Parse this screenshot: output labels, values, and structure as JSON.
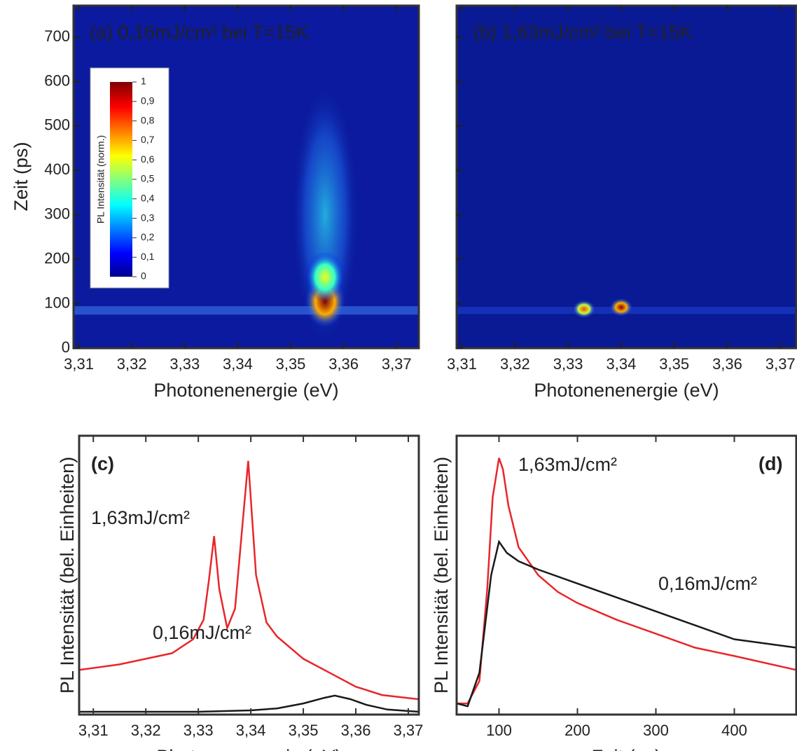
{
  "chart_data": [
    {
      "type": "heatmap",
      "title": "(a)  0,16mJ/cm² bei T=15K",
      "xlabel": "Photonenenergie (eV)",
      "ylabel": "Zeit (ps)",
      "xlim": [
        3.309,
        3.3742
      ],
      "ylim": [
        0,
        771
      ],
      "xticks": [
        {
          "value": 3.31,
          "label": "3,31"
        },
        {
          "value": 3.32,
          "label": "3,32"
        },
        {
          "value": 3.33,
          "label": "3,33"
        },
        {
          "value": 3.34,
          "label": "3,34"
        },
        {
          "value": 3.35,
          "label": "3,35"
        },
        {
          "value": 3.36,
          "label": "3,36"
        },
        {
          "value": 3.37,
          "label": "3,37"
        }
      ],
      "yticks": [
        0,
        100,
        200,
        300,
        400,
        500,
        600,
        700
      ],
      "spots": [
        {
          "x": 3.3565,
          "y": 105,
          "value": 1
        },
        {
          "x": 3.3565,
          "y": 160,
          "value": 0.6
        }
      ],
      "colorbar": {
        "label": "PL Intensität (norm.)",
        "ticks": [
          {
            "value": 0,
            "label": "0"
          },
          {
            "value": 0.1,
            "label": "0,1"
          },
          {
            "value": 0.2,
            "label": "0,2"
          },
          {
            "value": 0.3,
            "label": "0,3"
          },
          {
            "value": 0.4,
            "label": "0,4"
          },
          {
            "value": 0.5,
            "label": "0,5"
          },
          {
            "value": 0.6,
            "label": "0,6"
          },
          {
            "value": 0.7,
            "label": "0,7"
          },
          {
            "value": 0.8,
            "label": "0,8"
          },
          {
            "value": 0.9,
            "label": "0,9"
          },
          {
            "value": 1,
            "label": "1"
          }
        ]
      }
    },
    {
      "type": "heatmap",
      "title": "(b)  1,63mJ/cm² bei T=15K",
      "xlabel": "Photonenenergie (eV)",
      "xlim": [
        3.309,
        3.373
      ],
      "ylim": [
        0,
        771
      ],
      "xticks": [
        {
          "value": 3.31,
          "label": "3,31"
        },
        {
          "value": 3.32,
          "label": "3,32"
        },
        {
          "value": 3.33,
          "label": "3,33"
        },
        {
          "value": 3.34,
          "label": "3,34"
        },
        {
          "value": 3.35,
          "label": "3,35"
        },
        {
          "value": 3.36,
          "label": "3,36"
        },
        {
          "value": 3.37,
          "label": "3,37"
        }
      ],
      "yticks": [
        0,
        100,
        200,
        300,
        400,
        500,
        600,
        700
      ],
      "show_ytick_labels": false,
      "spots": [
        {
          "x": 3.333,
          "y": 88,
          "value": 0.8
        },
        {
          "x": 3.34,
          "y": 92,
          "value": 1
        }
      ]
    },
    {
      "type": "line",
      "title": "(c)",
      "xlabel": "Photonenenergie (eV)",
      "ylabel": "PL Intensität (bel. Einheiten)",
      "xlim": [
        3.3073,
        3.372
      ],
      "ylim": [
        0,
        1
      ],
      "xticks": [
        {
          "value": 3.31,
          "label": "3,31"
        },
        {
          "value": 3.32,
          "label": "3,32"
        },
        {
          "value": 3.33,
          "label": "3,33"
        },
        {
          "value": 3.34,
          "label": "3,34"
        },
        {
          "value": 3.35,
          "label": "3,35"
        },
        {
          "value": 3.36,
          "label": "3,36"
        },
        {
          "value": 3.37,
          "label": "3,37"
        }
      ],
      "series": [
        {
          "name": "1,63mJ/cm²",
          "color": "#e8262a",
          "x": [
            3.3073,
            3.315,
            3.32,
            3.325,
            3.329,
            3.331,
            3.332,
            3.333,
            3.334,
            3.3355,
            3.337,
            3.3385,
            3.3395,
            3.341,
            3.343,
            3.345,
            3.35,
            3.355,
            3.36,
            3.365,
            3.372
          ],
          "values": [
            0.16,
            0.18,
            0.2,
            0.22,
            0.27,
            0.34,
            0.48,
            0.64,
            0.45,
            0.31,
            0.38,
            0.7,
            0.91,
            0.5,
            0.33,
            0.28,
            0.2,
            0.15,
            0.1,
            0.07,
            0.055
          ]
        },
        {
          "name": "0,16mJ/cm²",
          "color": "#1a1a1a",
          "x": [
            3.3073,
            3.33,
            3.34,
            3.345,
            3.35,
            3.354,
            3.356,
            3.359,
            3.362,
            3.366,
            3.372
          ],
          "values": [
            0.01,
            0.01,
            0.015,
            0.022,
            0.04,
            0.06,
            0.068,
            0.055,
            0.035,
            0.018,
            0.01
          ]
        }
      ]
    },
    {
      "type": "line",
      "title": "(d)",
      "xlabel": "Zeit (ps)",
      "ylabel": "PL Intensität (bel. Einheiten)",
      "xlim": [
        46,
        479
      ],
      "ylim": [
        0,
        1
      ],
      "xticks": [
        100,
        200,
        300,
        400
      ],
      "series": [
        {
          "name": "1,63mJ/cm²",
          "color": "#e8262a",
          "x": [
            46,
            60,
            75,
            85,
            92,
            100,
            105,
            112,
            125,
            150,
            175,
            200,
            250,
            300,
            350,
            400,
            479
          ],
          "values": [
            0.04,
            0.04,
            0.12,
            0.45,
            0.78,
            0.92,
            0.88,
            0.75,
            0.6,
            0.5,
            0.44,
            0.4,
            0.34,
            0.29,
            0.24,
            0.21,
            0.16
          ]
        },
        {
          "name": "0,16mJ/cm²",
          "color": "#1a1a1a",
          "x": [
            46,
            60,
            75,
            90,
            100,
            110,
            125,
            150,
            200,
            250,
            300,
            350,
            400,
            479
          ],
          "values": [
            0.04,
            0.03,
            0.15,
            0.5,
            0.62,
            0.58,
            0.55,
            0.52,
            0.47,
            0.42,
            0.37,
            0.32,
            0.27,
            0.24
          ]
        }
      ]
    }
  ]
}
